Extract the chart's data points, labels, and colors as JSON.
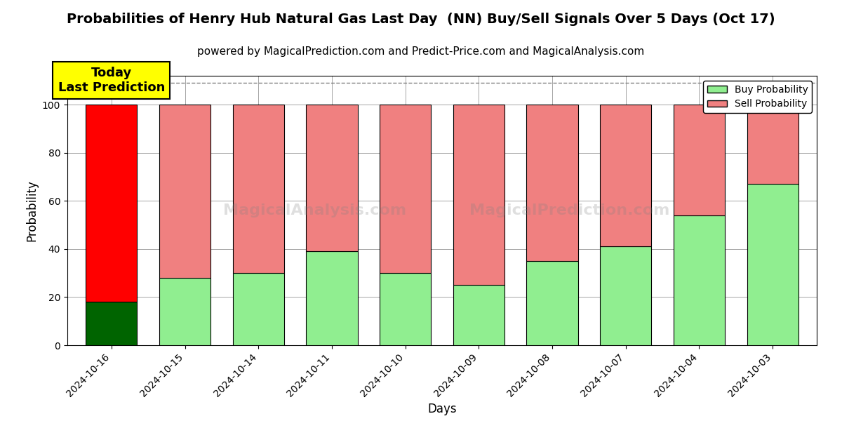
{
  "title": "Probabilities of Henry Hub Natural Gas Last Day  (NN) Buy/Sell Signals Over 5 Days (Oct 17)",
  "subtitle": "powered by MagicalPrediction.com and Predict-Price.com and MagicalAnalysis.com",
  "xlabel": "Days",
  "ylabel": "Probability",
  "categories": [
    "2024-10-16",
    "2024-10-15",
    "2024-10-14",
    "2024-10-11",
    "2024-10-10",
    "2024-10-09",
    "2024-10-08",
    "2024-10-07",
    "2024-10-04",
    "2024-10-03"
  ],
  "buy_values": [
    18,
    28,
    30,
    39,
    30,
    25,
    35,
    41,
    54,
    67
  ],
  "sell_values": [
    82,
    72,
    70,
    61,
    70,
    75,
    65,
    59,
    46,
    33
  ],
  "buy_color_today": "#006400",
  "sell_color_today": "#FF0000",
  "buy_color_others": "#90EE90",
  "sell_color_others": "#F08080",
  "bar_width": 0.7,
  "ylim": [
    0,
    112
  ],
  "yticks": [
    0,
    20,
    40,
    60,
    80,
    100
  ],
  "dashed_line_y": 109,
  "annotation_text": "Today\nLast Prediction",
  "annotation_bg": "#FFFF00",
  "legend_buy_label": "Buy Probability",
  "legend_sell_label": "Sell Probability",
  "figsize": [
    12,
    6
  ],
  "dpi": 100,
  "title_fontsize": 14,
  "subtitle_fontsize": 11,
  "label_fontsize": 12,
  "tick_fontsize": 10
}
